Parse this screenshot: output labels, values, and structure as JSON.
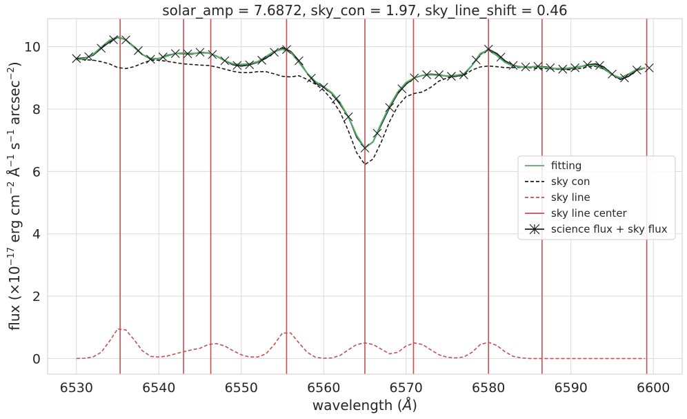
{
  "chart_data": {
    "type": "line",
    "title": "solar_amp = 7.6872, sky_con = 1.97, sky_line_shift = 0.46",
    "xlabel_prefix": "wavelength (",
    "xlabel_symbol": "Å",
    "xlabel_suffix": ")",
    "ylabel_main": "flux (×10",
    "ylabel_exp1": "−17",
    "ylabel_mid1": " erg cm",
    "ylabel_exp2": "−2",
    "ylabel_mid2": " Å",
    "ylabel_exp3": "−1",
    "ylabel_mid3": " s",
    "ylabel_exp4": "−1",
    "ylabel_mid4": " arcsec",
    "ylabel_exp5": "−2",
    "ylabel_end": ")",
    "xlim": [
      6526.5,
      6603.5
    ],
    "ylim": [
      -0.5,
      10.9
    ],
    "xticks": [
      6530,
      6540,
      6550,
      6560,
      6570,
      6580,
      6590,
      6600
    ],
    "yticks": [
      0,
      2,
      4,
      6,
      8,
      10
    ],
    "grid": true,
    "legend_position": "center-right",
    "colors": {
      "fitting": "#55a868",
      "sky_con": "#1a1a1a",
      "sky_line": "#c44e52",
      "sky_line_center": "#c44e52",
      "science": "#1a1a1a",
      "grid": "#d9d9d9"
    },
    "legend": [
      {
        "key": "fitting",
        "label": "fitting",
        "style": "solid",
        "color": "#55a868"
      },
      {
        "key": "sky_con",
        "label": "sky con",
        "style": "dashed",
        "color": "#1a1a1a"
      },
      {
        "key": "sky_line",
        "label": "sky line",
        "style": "dashed",
        "color": "#c44e52"
      },
      {
        "key": "sky_line_center",
        "label": "sky line center",
        "style": "solid",
        "color": "#c44e52"
      },
      {
        "key": "science",
        "label": "science flux + sky flux",
        "style": "marker",
        "color": "#1a1a1a"
      }
    ],
    "sky_line_centers": [
      6535.3,
      6543.0,
      6546.3,
      6555.5,
      6565.0,
      6570.9,
      6580.0,
      6586.5,
      6599.2
    ],
    "x": [
      6530,
      6531,
      6532,
      6533,
      6534,
      6535,
      6536,
      6537,
      6538,
      6539,
      6540,
      6541,
      6542,
      6543,
      6544,
      6545,
      6546,
      6547,
      6548,
      6549,
      6550,
      6551,
      6552,
      6553,
      6554,
      6555,
      6556,
      6557,
      6558,
      6559,
      6560,
      6561,
      6562,
      6563,
      6564,
      6565,
      6566,
      6567,
      6568,
      6569,
      6570,
      6571,
      6572,
      6573,
      6574,
      6575,
      6576,
      6577,
      6578,
      6579,
      6580,
      6581,
      6582,
      6583,
      6584,
      6585,
      6586,
      6587,
      6588,
      6589,
      6590,
      6591,
      6592,
      6593,
      6594,
      6595,
      6596,
      6597,
      6598,
      6599
    ],
    "series": [
      {
        "key": "sky_con",
        "name": "sky con",
        "values": [
          9.6,
          9.58,
          9.57,
          9.52,
          9.45,
          9.33,
          9.3,
          9.36,
          9.47,
          9.56,
          9.57,
          9.53,
          9.49,
          9.45,
          9.43,
          9.41,
          9.4,
          9.35,
          9.28,
          9.21,
          9.17,
          9.17,
          9.2,
          9.2,
          9.13,
          9.05,
          9.03,
          9.07,
          8.95,
          8.8,
          8.6,
          8.3,
          7.9,
          7.3,
          6.6,
          6.22,
          6.4,
          6.95,
          7.6,
          8.1,
          8.4,
          8.5,
          8.55,
          8.7,
          8.9,
          9.0,
          9.05,
          9.08,
          9.25,
          9.35,
          9.38,
          9.36,
          9.33,
          9.33,
          9.34,
          9.33,
          9.3,
          9.3,
          9.28,
          9.27,
          9.26,
          9.3,
          9.35,
          9.37,
          9.28,
          9.1,
          9.0,
          9.1,
          9.25,
          9.3
        ]
      },
      {
        "key": "science",
        "name": "science flux + sky flux",
        "values": [
          9.62,
          9.64,
          9.72,
          9.95,
          10.15,
          10.3,
          10.22,
          10.0,
          9.75,
          9.6,
          9.62,
          9.72,
          9.78,
          9.78,
          9.76,
          9.82,
          9.8,
          9.7,
          9.55,
          9.42,
          9.38,
          9.42,
          9.5,
          9.63,
          9.82,
          9.97,
          9.85,
          9.55,
          9.15,
          8.83,
          8.7,
          8.5,
          8.15,
          7.75,
          7.1,
          6.75,
          6.95,
          7.5,
          8.05,
          8.5,
          8.8,
          9.0,
          9.08,
          9.12,
          9.1,
          9.05,
          9.05,
          9.1,
          9.4,
          9.75,
          9.92,
          9.78,
          9.55,
          9.4,
          9.35,
          9.35,
          9.37,
          9.35,
          9.3,
          9.28,
          9.3,
          9.35,
          9.42,
          9.45,
          9.35,
          9.12,
          8.95,
          9.05,
          9.25,
          9.32
        ]
      },
      {
        "key": "fitting",
        "name": "fitting",
        "values": [
          9.58,
          9.62,
          9.75,
          9.98,
          10.2,
          10.32,
          10.22,
          9.98,
          9.75,
          9.62,
          9.62,
          9.7,
          9.78,
          9.8,
          9.78,
          9.8,
          9.8,
          9.7,
          9.55,
          9.45,
          9.43,
          9.45,
          9.52,
          9.68,
          9.85,
          9.92,
          9.82,
          9.5,
          9.15,
          8.88,
          8.72,
          8.52,
          8.2,
          7.75,
          7.15,
          6.75,
          6.95,
          7.55,
          8.1,
          8.55,
          8.85,
          9.0,
          9.08,
          9.1,
          9.08,
          9.06,
          9.08,
          9.12,
          9.4,
          9.78,
          9.9,
          9.72,
          9.5,
          9.38,
          9.35,
          9.35,
          9.35,
          9.33,
          9.3,
          9.3,
          9.32,
          9.36,
          9.4,
          9.4,
          9.3,
          9.1,
          9.0,
          9.12,
          9.28,
          9.32
        ]
      },
      {
        "key": "sky_line",
        "name": "sky line",
        "values": [
          0.0,
          0.01,
          0.05,
          0.2,
          0.55,
          0.95,
          0.92,
          0.6,
          0.25,
          0.07,
          0.05,
          0.08,
          0.15,
          0.22,
          0.28,
          0.33,
          0.45,
          0.48,
          0.4,
          0.25,
          0.12,
          0.05,
          0.05,
          0.15,
          0.45,
          0.82,
          0.82,
          0.5,
          0.2,
          0.04,
          0.01,
          0.02,
          0.1,
          0.28,
          0.45,
          0.5,
          0.45,
          0.3,
          0.15,
          0.2,
          0.4,
          0.5,
          0.45,
          0.28,
          0.12,
          0.04,
          0.02,
          0.05,
          0.2,
          0.45,
          0.52,
          0.42,
          0.22,
          0.07,
          0.02,
          0.0,
          0.0,
          0.0,
          0.0,
          0.0,
          0.0,
          0.0,
          0.0,
          0.0,
          0.0,
          0.0,
          0.0,
          0.0,
          0.0,
          0.0
        ]
      }
    ],
    "marker_x": [
      6530,
      6531.5,
      6533,
      6534.5,
      6536,
      6537.5,
      6539,
      6540.5,
      6542,
      6543.5,
      6545,
      6546.5,
      6548,
      6549.5,
      6551,
      6552.5,
      6554,
      6555.5,
      6557,
      6558.5,
      6560,
      6561.5,
      6563,
      6565,
      6566.5,
      6568,
      6569.5,
      6571,
      6572.5,
      6574,
      6575.5,
      6577,
      6578.5,
      6580,
      6581.5,
      6583,
      6584.5,
      6586,
      6587.5,
      6589,
      6590.5,
      6592,
      6593.5,
      6595,
      6596.5,
      6598,
      6599.5
    ]
  }
}
